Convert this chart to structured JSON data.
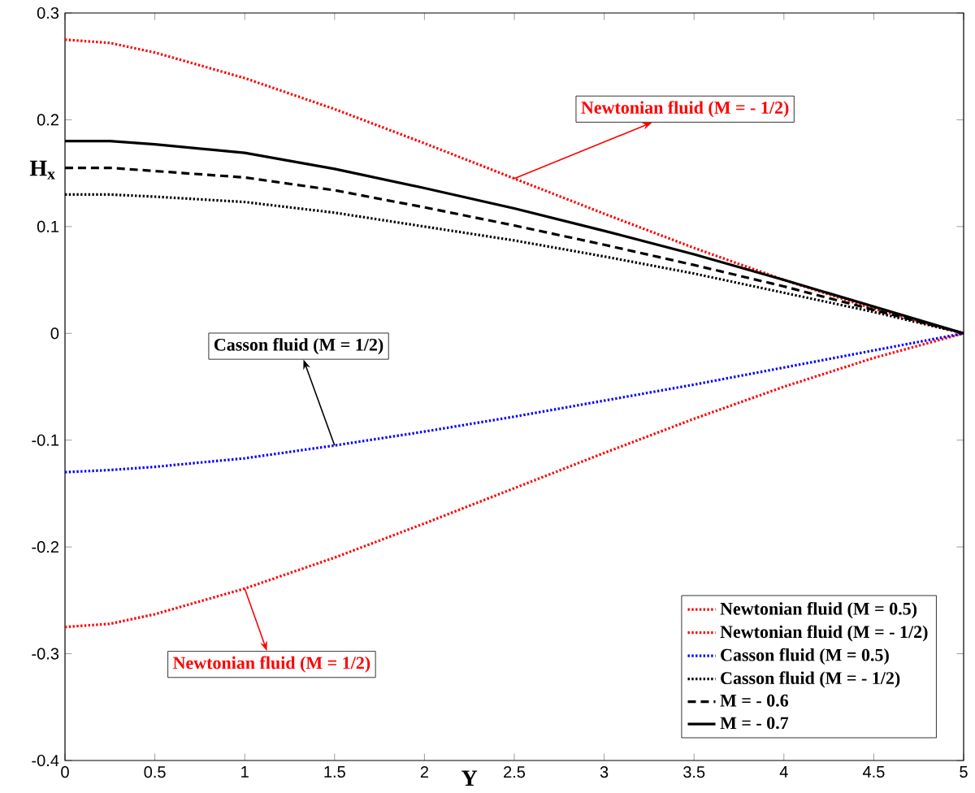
{
  "chart_data": {
    "type": "line",
    "xlabel": "Y",
    "ylabel": "H$_{x}$",
    "xlim": [
      0,
      5
    ],
    "ylim": [
      -0.4,
      0.3
    ],
    "xticks": [
      0,
      0.5,
      1,
      1.5,
      2,
      2.5,
      3,
      3.5,
      4,
      4.5,
      5
    ],
    "yticks": [
      -0.4,
      -0.3,
      -0.2,
      -0.1,
      0,
      0.1,
      0.2,
      0.3
    ],
    "legend": "bottom right",
    "grid": false,
    "x": [
      0,
      0.25,
      0.5,
      1,
      1.5,
      2,
      2.5,
      3,
      3.5,
      4,
      4.5,
      5
    ],
    "series": [
      {
        "name": "Newtonian fluid (M = 0.5)",
        "color": "#ff0000",
        "line_style": "dotted",
        "values": [
          -0.275,
          -0.272,
          -0.263,
          -0.239,
          -0.21,
          -0.178,
          -0.145,
          -0.112,
          -0.08,
          -0.05,
          -0.023,
          0
        ]
      },
      {
        "name": "Newtonian fluid (M = - 1/2)",
        "color": "#ff0000",
        "line_style": "dotted",
        "values": [
          0.275,
          0.272,
          0.263,
          0.239,
          0.21,
          0.178,
          0.145,
          0.112,
          0.08,
          0.05,
          0.023,
          0
        ]
      },
      {
        "name": "Casson fluid (M = 0.5)",
        "color": "#0000ff",
        "line_style": "dotted",
        "values": [
          -0.13,
          -0.128,
          -0.125,
          -0.117,
          -0.105,
          -0.092,
          -0.078,
          -0.063,
          -0.048,
          -0.032,
          -0.016,
          0
        ]
      },
      {
        "name": "Casson fluid (M = - 1/2)",
        "color": "#000000",
        "line_style": "dotted",
        "values": [
          0.13,
          0.13,
          0.128,
          0.123,
          0.113,
          0.1,
          0.087,
          0.072,
          0.056,
          0.038,
          0.02,
          0
        ]
      },
      {
        "name": "M = - 0.6",
        "color": "#000000",
        "line_style": "dashed",
        "values": [
          0.155,
          0.155,
          0.152,
          0.146,
          0.134,
          0.118,
          0.101,
          0.083,
          0.064,
          0.044,
          0.022,
          0
        ]
      },
      {
        "name": "M = - 0.7",
        "color": "#000000",
        "line_style": "solid",
        "values": [
          0.18,
          0.18,
          0.177,
          0.169,
          0.154,
          0.136,
          0.117,
          0.096,
          0.074,
          0.05,
          0.025,
          0
        ]
      }
    ],
    "annotations": [
      {
        "text": "Newtonian fluid (M = - 1/2)",
        "x": 2.5,
        "y": 0.145
      },
      {
        "text": "Casson fluid (M = 1/2)",
        "x": 1.5,
        "y": -0.105
      },
      {
        "text": "Newtonian fluid (M = 1/2)",
        "x": 1,
        "y": -0.239
      }
    ]
  }
}
